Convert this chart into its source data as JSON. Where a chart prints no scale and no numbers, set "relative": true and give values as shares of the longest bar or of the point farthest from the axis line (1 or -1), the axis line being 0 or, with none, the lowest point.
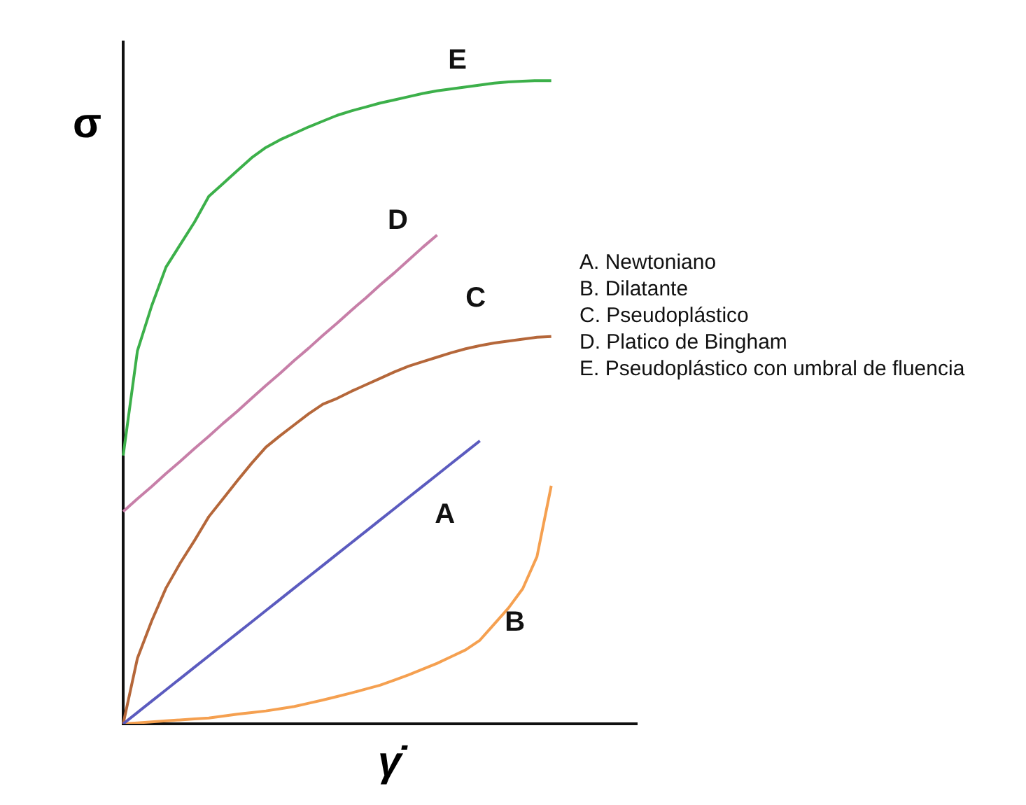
{
  "chart_data": {
    "type": "line",
    "relative": true,
    "xlabel": "γ̇",
    "ylabel": "σ",
    "legend": false,
    "grid": false,
    "marker": "none",
    "line_style": "solid",
    "annotations": [
      "A. Newtoniano",
      "B. Dilatante",
      "C. Pseudoplástico",
      "D. Platico de Bingham",
      "E. Pseudoplástico con umbral de fluencia"
    ],
    "categories": [
      null,
      null,
      null,
      null,
      null,
      null,
      null,
      null,
      null,
      null,
      null,
      null,
      null,
      null,
      null,
      null,
      null,
      null,
      null,
      null,
      null,
      null,
      null,
      null,
      null,
      null,
      null,
      null,
      null,
      null,
      null,
      null,
      null,
      null,
      null,
      null,
      null
    ],
    "series": [
      {
        "name": "A",
        "color": "#5b5bbf",
        "values": [
          0,
          0.0176,
          0.0352,
          0.0528,
          0.0704,
          0.088,
          0.1056,
          0.1232,
          0.1408,
          0.1584,
          0.176,
          0.1936,
          0.2112,
          0.2288,
          0.2464,
          0.264,
          0.2816,
          0.2992,
          0.3168,
          0.3344,
          0.352,
          0.3696,
          0.3872,
          0.4048,
          0.4224,
          0.44,
          null,
          null,
          null,
          null,
          null,
          null,
          null,
          null,
          null,
          null,
          null
        ]
      },
      {
        "name": "B",
        "color": "#f5a050",
        "values": [
          0,
          0.0015,
          0.003,
          0.0045,
          0.006,
          0.0075,
          0.009,
          0.012,
          0.015,
          0.0175,
          0.02,
          0.0235,
          0.027,
          0.032,
          0.037,
          0.0425,
          0.048,
          0.054,
          0.06,
          0.068,
          0.076,
          0.085,
          0.094,
          0.1045,
          0.115,
          0.13,
          0.155,
          0.18,
          0.21,
          0.26,
          0.37,
          null,
          null,
          null,
          null,
          null,
          null
        ]
      },
      {
        "name": "C",
        "color": "#b5673a",
        "values": [
          0,
          0.102,
          0.16,
          0.211,
          0.25,
          0.285,
          0.322,
          0.35,
          0.378,
          0.405,
          0.43,
          0.448,
          0.465,
          0.482,
          0.497,
          0.506,
          0.517,
          0.527,
          0.537,
          0.547,
          0.556,
          0.563,
          0.57,
          0.577,
          0.583,
          0.588,
          0.592,
          0.595,
          0.598,
          0.601,
          0.602,
          null,
          null,
          null,
          null,
          null,
          null
        ]
      },
      {
        "name": "D",
        "color": "#c77fa8",
        "values": [
          0.33,
          0.35,
          0.369,
          0.389,
          0.408,
          0.428,
          0.447,
          0.467,
          0.486,
          0.506,
          0.526,
          0.545,
          0.565,
          0.584,
          0.604,
          0.623,
          0.643,
          0.662,
          0.682,
          0.701,
          0.721,
          0.741,
          0.76,
          null,
          null,
          null,
          null,
          null,
          null,
          null,
          null,
          null,
          null,
          null,
          null,
          null,
          null
        ]
      },
      {
        "name": "E",
        "color": "#3cb04a",
        "values": [
          0.417,
          0.58,
          0.65,
          0.71,
          0.745,
          0.78,
          0.82,
          0.84,
          0.86,
          0.88,
          0.896,
          0.908,
          0.918,
          0.928,
          0.937,
          0.946,
          0.953,
          0.959,
          0.965,
          0.97,
          0.975,
          0.98,
          0.984,
          0.987,
          0.99,
          0.993,
          0.996,
          0.998,
          0.999,
          1.0,
          1.0,
          null,
          null,
          null,
          null,
          null,
          null
        ]
      }
    ]
  }
}
